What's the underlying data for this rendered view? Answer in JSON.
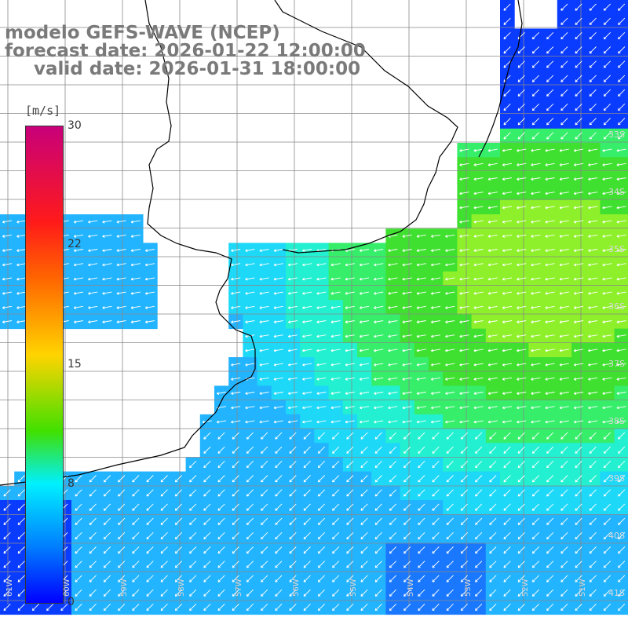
{
  "titles": {
    "model": "modelo GEFS-WAVE (NCEP)",
    "forecast": "forecast date: 2026-01-22 12:00:00",
    "valid": "valid date: 2026-01-31 18:00:00"
  },
  "colorbar": {
    "unit": "[m/s]",
    "ticks": [
      "30",
      "22",
      "15",
      "8",
      "0"
    ],
    "colors": [
      "#c8007a",
      "#ff1a1a",
      "#ff6600",
      "#ffd400",
      "#40e000",
      "#00f0ff",
      "#0080ff",
      "#0000ff"
    ]
  },
  "lat_labels": [
    "33S",
    "34S",
    "35S",
    "36S",
    "37S",
    "38S",
    "39S",
    "40S",
    "41S"
  ],
  "lon_labels": [
    "61W",
    "60W",
    "59W",
    "58W",
    "57W",
    "56W",
    "55W",
    "54W",
    "53W",
    "52W",
    "51W"
  ],
  "field": {
    "variable": "wind speed",
    "unit": "m/s",
    "colors": {
      "land": "#ffffff",
      "coast": "#000000",
      "grid": "#888888",
      "arrows": "#ffffff"
    }
  }
}
